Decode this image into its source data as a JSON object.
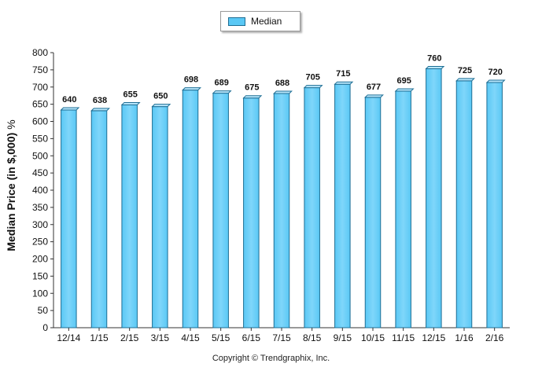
{
  "legend": {
    "label": "Median"
  },
  "copyright": "Copyright © Trendgraphix, Inc.",
  "chart_data": {
    "type": "bar",
    "title": "",
    "xlabel": "",
    "ylabel": "Median Price (in $,000)",
    "ylabel_suffix": "%",
    "categories": [
      "12/14",
      "1/15",
      "2/15",
      "3/15",
      "4/15",
      "5/15",
      "6/15",
      "7/15",
      "8/15",
      "9/15",
      "10/15",
      "11/15",
      "12/15",
      "1/16",
      "2/16"
    ],
    "series": [
      {
        "name": "Median",
        "values": [
          640,
          638,
          655,
          650,
          698,
          689,
          675,
          688,
          705,
          715,
          677,
          695,
          760,
          725,
          720
        ]
      }
    ],
    "ylim": [
      0,
      800
    ],
    "yticks": [
      0,
      50,
      100,
      150,
      200,
      250,
      300,
      350,
      400,
      450,
      500,
      550,
      600,
      650,
      700,
      750,
      800
    ],
    "grid": false,
    "legend_position": "top-center",
    "colors": {
      "bar_fill": "#5ac8f5",
      "bar_stroke": "#1e6e94",
      "bar_top": "#b7e6fb"
    }
  }
}
